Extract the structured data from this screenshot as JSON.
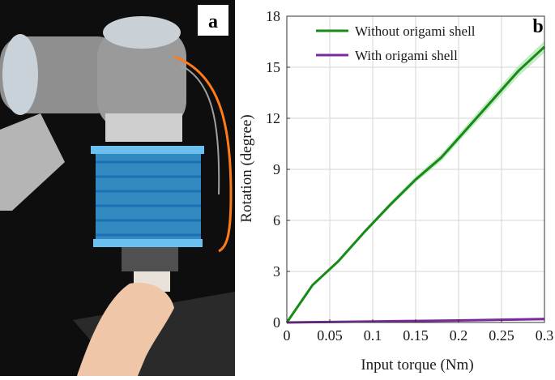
{
  "panel_a": {
    "letter": "a",
    "colors": {
      "background": "#0d0d0d",
      "robot_body": "#9a9a9a",
      "robot_cap": "#c9d1d6",
      "gripper": "#3aa0e0",
      "cable": "#ff7a1a",
      "hand": "#f0c6a8"
    }
  },
  "panel_b": {
    "letter": "b"
  },
  "chart_data": {
    "type": "line",
    "xlabel": "Input torque (Nm)",
    "ylabel": "Rotation (degree)",
    "xlim": [
      0,
      0.3
    ],
    "ylim": [
      0,
      18
    ],
    "xticks": [
      "0",
      "0.05",
      "0.1",
      "0.15",
      "0.2",
      "0.25",
      "0.3"
    ],
    "yticks": [
      "0",
      "3",
      "6",
      "9",
      "12",
      "15",
      "18"
    ],
    "grid": true,
    "legend_position": "top",
    "series": [
      {
        "name": "Without origami shell",
        "color": "#188a18",
        "band_color": "#9ee09e",
        "x": [
          0,
          0.03,
          0.06,
          0.09,
          0.12,
          0.15,
          0.18,
          0.21,
          0.24,
          0.27,
          0.3
        ],
        "y": [
          0,
          2.2,
          3.6,
          5.3,
          6.9,
          8.4,
          9.7,
          11.4,
          13.1,
          14.8,
          16.2
        ]
      },
      {
        "name": "With origami shell",
        "color": "#7a2a9a",
        "band_color": "#c9a0dc",
        "x": [
          0,
          0.05,
          0.1,
          0.15,
          0.2,
          0.25,
          0.3
        ],
        "y": [
          0,
          0.03,
          0.06,
          0.09,
          0.12,
          0.16,
          0.2
        ]
      }
    ]
  }
}
